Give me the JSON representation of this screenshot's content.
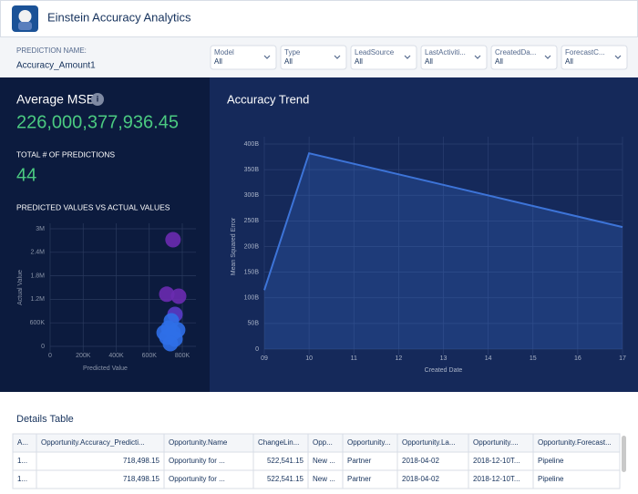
{
  "header": {
    "title": "Einstein Accuracy Analytics"
  },
  "filter_bar": {
    "prediction_label": "PREDICTION NAME:",
    "prediction_name": "Accuracy_Amount1",
    "filters": [
      {
        "label": "Model",
        "value": "All"
      },
      {
        "label": "Type",
        "value": "All"
      },
      {
        "label": "LeadSource",
        "value": "All"
      },
      {
        "label": "LastActiviti...",
        "value": "All"
      },
      {
        "label": "CreatedDa...",
        "value": "All"
      },
      {
        "label": "ForecastC...",
        "value": "All"
      }
    ]
  },
  "summary": {
    "mse_label": "Average MSE",
    "mse_value": "226,000,377,936.45",
    "count_label": "TOTAL # OF PREDICTIONS",
    "count_value": "44",
    "scatter_title": "PREDICTED VALUES VS ACTUAL VALUES"
  },
  "chart_data": [
    {
      "type": "scatter",
      "x_label": "Predicted Value",
      "y_label": "Actual Value",
      "x": [
        744000,
        706000,
        778000,
        756000,
        734000,
        717000,
        745000,
        706000,
        756000,
        728000,
        772000,
        690000
      ],
      "values": [
        2720000,
        1330000,
        1280000,
        814000,
        651000,
        465000,
        349000,
        233000,
        186000,
        70000,
        419000,
        349000
      ],
      "colors": [
        "#6a2bb0",
        "#6a2bb0",
        "#6a2bb0",
        "#5a3cc8",
        "#2f6fe8",
        "#2f6fe8",
        "#2f6fe8",
        "#2f6fe8",
        "#2f6fe8",
        "#2f6fe8",
        "#2f6fe8",
        "#2f6fe8"
      ],
      "xlim": [
        0,
        800000
      ],
      "ylim": [
        0,
        3000000
      ],
      "xticks": [
        0,
        {
          "value": 200000,
          "label": "200K"
        },
        {
          "value": 400000,
          "label": "400K"
        },
        {
          "value": 600000,
          "label": "600K"
        },
        {
          "value": 800000,
          "label": "800K"
        }
      ],
      "yticks": [
        0,
        {
          "value": 600000,
          "label": "600K"
        },
        {
          "value": 1200000,
          "label": "1.2M"
        },
        {
          "value": 1800000,
          "label": "1.8M"
        },
        {
          "value": 2400000,
          "label": "2.4M"
        },
        {
          "value": 3000000,
          "label": "3M"
        }
      ],
      "grid": true
    },
    {
      "type": "area",
      "title": "Accuracy Trend",
      "x_label": "Created Date",
      "y_label": "Mean Squared Error",
      "x": [
        9,
        10,
        17
      ],
      "values": [
        115000000000,
        382000000000,
        238000000000
      ],
      "color": "#3d74d8",
      "xlim": [
        9,
        17
      ],
      "ylim": [
        0,
        400000000000
      ],
      "xticks": [
        {
          "value": 9,
          "label": "09"
        },
        10,
        11,
        12,
        13,
        14,
        15,
        16,
        17
      ],
      "yticks": [
        0,
        {
          "value": 50000000000,
          "label": "50B"
        },
        {
          "value": 100000000000,
          "label": "100B"
        },
        {
          "value": 150000000000,
          "label": "150B"
        },
        {
          "value": 200000000000,
          "label": "200B"
        },
        {
          "value": 250000000000,
          "label": "250B"
        },
        {
          "value": 300000000000,
          "label": "300B"
        },
        {
          "value": 350000000000,
          "label": "350B"
        },
        {
          "value": 400000000000,
          "label": "400B"
        }
      ],
      "grid": true
    }
  ],
  "details": {
    "title": "Details Table",
    "columns": [
      "A...",
      "Opportunity.Accuracy_Predicti...",
      "Opportunity.Name",
      "ChangeLin...",
      "Opp...",
      "Opportunity...",
      "Opportunity.La...",
      "Opportunity....",
      "Opportunity.Forecast..."
    ],
    "rows": [
      [
        "1...",
        "718,498.15",
        "Opportunity for ...",
        "522,541.15",
        "New ...",
        "Partner",
        "2018-04-02",
        "2018-12-10T...",
        "Pipeline"
      ],
      [
        "1...",
        "718,498.15",
        "Opportunity for ...",
        "522,541.15",
        "New ...",
        "Partner",
        "2018-04-02",
        "2018-12-10T...",
        "Pipeline"
      ]
    ]
  }
}
